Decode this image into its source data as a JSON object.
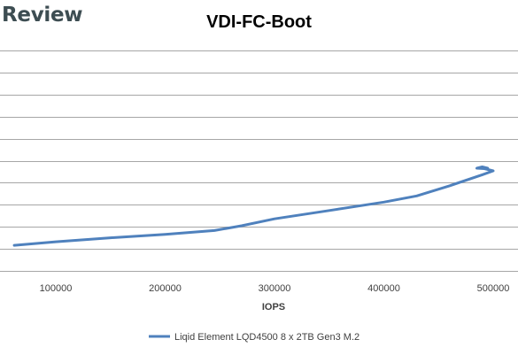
{
  "brand": {
    "text": "Review"
  },
  "chart_data": {
    "type": "line",
    "title": "VDI-FC-Boot",
    "xlabel": "IOPS",
    "ylabel": "",
    "xlim": [
      50000,
      510000
    ],
    "xticks": [
      100000,
      200000,
      300000,
      400000,
      500000
    ],
    "tick_labels": [
      "100000",
      "200000",
      "300000",
      "400000",
      "500000"
    ],
    "grid": true,
    "legend_position": "bottom",
    "series": [
      {
        "name": "Liqid Element LQD4500 8 x 2TB Gen3 M.2",
        "color": "#4f81bd",
        "points": [
          [
            62000,
            1.16
          ],
          [
            100000,
            1.32
          ],
          [
            150000,
            1.5
          ],
          [
            200000,
            1.66
          ],
          [
            245000,
            1.83
          ],
          [
            270000,
            2.05
          ],
          [
            300000,
            2.36
          ],
          [
            350000,
            2.74
          ],
          [
            400000,
            3.12
          ],
          [
            430000,
            3.4
          ],
          [
            460000,
            3.86
          ],
          [
            490000,
            4.36
          ],
          [
            500000,
            4.54
          ],
          [
            492000,
            4.64
          ],
          [
            485000,
            4.66
          ],
          [
            490000,
            4.72
          ],
          [
            495000,
            4.66
          ]
        ]
      }
    ]
  }
}
